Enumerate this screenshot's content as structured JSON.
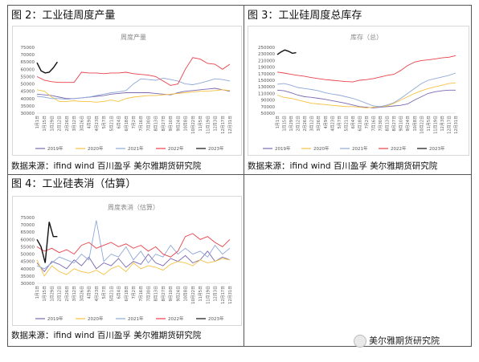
{
  "figures": [
    {
      "caption": "图 2：工业硅周度产量",
      "source": "数据来源：ifind wind 百川盈孚 美尔雅期货研究院"
    },
    {
      "caption": "图 3：工业硅周度总库存",
      "source": "数据来源：ifind wind 百川盈孚 美尔雅期货研究院"
    },
    {
      "caption": "图 4：工业硅表消（估算）",
      "source": "数据来源：ifind wind 百川盈孚 美尔雅期货研究院"
    }
  ],
  "watermark": {
    "text": "美尔雅期货研究院"
  },
  "colors": {
    "2019": "#7b68b0",
    "2020": "#f5c242",
    "2021": "#8fa8d6",
    "2022": "#e8414a",
    "2023": "#111111"
  },
  "chart_data": [
    {
      "type": "line",
      "title": "周度产量",
      "ylim": [
        30000,
        75000
      ],
      "yticks": [
        "75000",
        "70000",
        "65000",
        "60000",
        "55000",
        "50000",
        "45000",
        "40000",
        "35000",
        "30000"
      ],
      "xticks": [
        "1月1日",
        "1月15日",
        "1月29日",
        "2月12日",
        "2月26日",
        "3月12日",
        "3月26日",
        "4月9日",
        "4月23日",
        "5月7日",
        "5月21日",
        "6月4日",
        "6月18日",
        "7月2日",
        "7月16日",
        "7月30日",
        "8月13日",
        "8月27日",
        "9月10日",
        "9月24日",
        "10月8日",
        "10月22日",
        "11月5日",
        "11月19日",
        "12月3日",
        "12月17日",
        "12月31日"
      ],
      "series": [
        {
          "name": "2019年",
          "values": [
            43000,
            42500,
            42000,
            41000,
            40000,
            40000,
            40500,
            41000,
            41500,
            42000,
            43000,
            43500,
            44000,
            44000,
            44000,
            44000,
            43500,
            43000,
            42500,
            44000,
            45000,
            45500,
            46000,
            46500,
            47000,
            46000,
            45000
          ]
        },
        {
          "name": "2020年",
          "values": [
            46000,
            45000,
            41000,
            38000,
            38000,
            38500,
            38000,
            38000,
            37500,
            38000,
            39000,
            38000,
            40000,
            41000,
            41500,
            42000,
            42000,
            42500,
            43000,
            43500,
            44000,
            44500,
            45000,
            45000,
            45500,
            46000,
            45500
          ]
        },
        {
          "name": "2021年",
          "values": [
            41500,
            41000,
            40000,
            40000,
            39500,
            40000,
            40500,
            41000,
            42000,
            43000,
            44000,
            44500,
            45500,
            50000,
            53500,
            53000,
            52500,
            54000,
            53000,
            52000,
            50000,
            49500,
            50500,
            52000,
            53500,
            53000,
            52000
          ]
        },
        {
          "name": "2022年",
          "values": [
            55000,
            52500,
            51500,
            51000,
            51000,
            51000,
            58000,
            57500,
            57500,
            57000,
            57500,
            57500,
            58000,
            57000,
            56500,
            56000,
            55000,
            52000,
            49000,
            50000,
            60000,
            68000,
            67000,
            64000,
            63500,
            60000,
            63500
          ]
        },
        {
          "name": "2023年",
          "values": [
            64500,
            59000,
            57500,
            58000,
            61000,
            65000
          ]
        }
      ]
    },
    {
      "type": "line",
      "title": "库存（总）",
      "ylim": [
        50000,
        250000
      ],
      "yticks": [
        "250000",
        "230000",
        "210000",
        "190000",
        "170000",
        "150000",
        "130000",
        "110000",
        "90000",
        "70000",
        "50000"
      ],
      "xticks": [
        "1月1日",
        "1月15日",
        "1月29日",
        "2月12日",
        "2月26日",
        "3月12日",
        "3月26日",
        "4月9日",
        "4月23日",
        "5月7日",
        "5月21日",
        "6月4日",
        "6月18日",
        "7月2日",
        "7月16日",
        "7月30日",
        "8月13日",
        "8月27日",
        "9月10日",
        "9月24日",
        "10月8日",
        "10月22日",
        "11月5日",
        "11月19日",
        "12月3日",
        "12月17日",
        "12月31日"
      ],
      "series": [
        {
          "name": "2019年",
          "values": [
            120000,
            118000,
            112000,
            105000,
            100000,
            98000,
            95000,
            92000,
            88000,
            84000,
            80000,
            75000,
            70000,
            68000,
            66000,
            68000,
            70000,
            72000,
            74000,
            78000,
            90000,
            100000,
            110000,
            115000,
            118000,
            120000,
            120000
          ]
        },
        {
          "name": "2020年",
          "values": [
            105000,
            98000,
            95000,
            90000,
            85000,
            80000,
            78000,
            76000,
            74000,
            72000,
            70000,
            70000,
            68000,
            66000,
            68000,
            70000,
            72000,
            80000,
            90000,
            100000,
            110000,
            118000,
            125000,
            130000,
            135000,
            140000,
            142000
          ]
        },
        {
          "name": "2021年",
          "values": [
            138000,
            140000,
            135000,
            128000,
            125000,
            122000,
            118000,
            112000,
            108000,
            105000,
            100000,
            95000,
            88000,
            80000,
            72000,
            70000,
            75000,
            82000,
            95000,
            110000,
            125000,
            140000,
            150000,
            155000,
            160000,
            165000,
            172000
          ]
        },
        {
          "name": "2022年",
          "values": [
            175000,
            172000,
            168000,
            165000,
            162000,
            158000,
            155000,
            152000,
            150000,
            148000,
            146000,
            145000,
            150000,
            152000,
            155000,
            160000,
            165000,
            168000,
            180000,
            195000,
            205000,
            210000,
            212000,
            215000,
            218000,
            220000,
            225000
          ]
        },
        {
          "name": "2023年",
          "values": [
            228000,
            236000,
            242000,
            238000,
            232000,
            234000
          ]
        }
      ]
    },
    {
      "type": "line",
      "title": "周度表消（估算）",
      "ylim": [
        30000,
        75000
      ],
      "yticks": [
        "75000",
        "70000",
        "65000",
        "60000",
        "55000",
        "50000",
        "45000",
        "40000",
        "35000",
        "30000"
      ],
      "xticks": [
        "1月1日",
        "1月15日",
        "1月29日",
        "2月12日",
        "2月26日",
        "3月12日",
        "3月26日",
        "4月9日",
        "4月23日",
        "5月7日",
        "5月21日",
        "6月4日",
        "6月18日",
        "7月2日",
        "7月16日",
        "7月30日",
        "8月13日",
        "8月27日",
        "9月10日",
        "9月24日",
        "10月8日",
        "10月22日",
        "11月5日",
        "11月19日",
        "12月3日",
        "12月17日",
        "12月31日"
      ],
      "series": [
        {
          "name": "2019年",
          "values": [
            44000,
            38000,
            45000,
            43000,
            40000,
            46000,
            42000,
            48000,
            40000,
            44000,
            42000,
            47000,
            41000,
            45000,
            43000,
            50000,
            44000,
            42000,
            47000,
            45000,
            49000,
            44000,
            46000,
            52000,
            45000,
            48000,
            46000
          ]
        },
        {
          "name": "2020年",
          "values": [
            46000,
            35000,
            42000,
            38000,
            36000,
            40000,
            38000,
            37000,
            39000,
            36000,
            40000,
            42000,
            38000,
            44000,
            40000,
            42000,
            41000,
            39000,
            43000,
            45000,
            44000,
            42000,
            46000,
            44000,
            45000,
            47000,
            46000
          ]
        },
        {
          "name": "2021年",
          "values": [
            42000,
            40000,
            44000,
            48000,
            46000,
            44000,
            50000,
            46000,
            73000,
            45000,
            50000,
            48000,
            55000,
            46000,
            52000,
            44000,
            50000,
            48000,
            56000,
            50000,
            54000,
            50000,
            52000,
            48000,
            56000,
            50000,
            54000
          ]
        },
        {
          "name": "2022年",
          "values": [
            55000,
            52000,
            54000,
            51000,
            53000,
            50000,
            56000,
            58000,
            54000,
            56000,
            58000,
            55000,
            57000,
            54000,
            56000,
            52000,
            55000,
            50000,
            48000,
            52000,
            62000,
            64000,
            60000,
            62000,
            58000,
            55000,
            60000
          ]
        },
        {
          "name": "2023年",
          "values": [
            60000,
            55000,
            44000,
            72000,
            62000,
            62000
          ]
        }
      ]
    }
  ]
}
